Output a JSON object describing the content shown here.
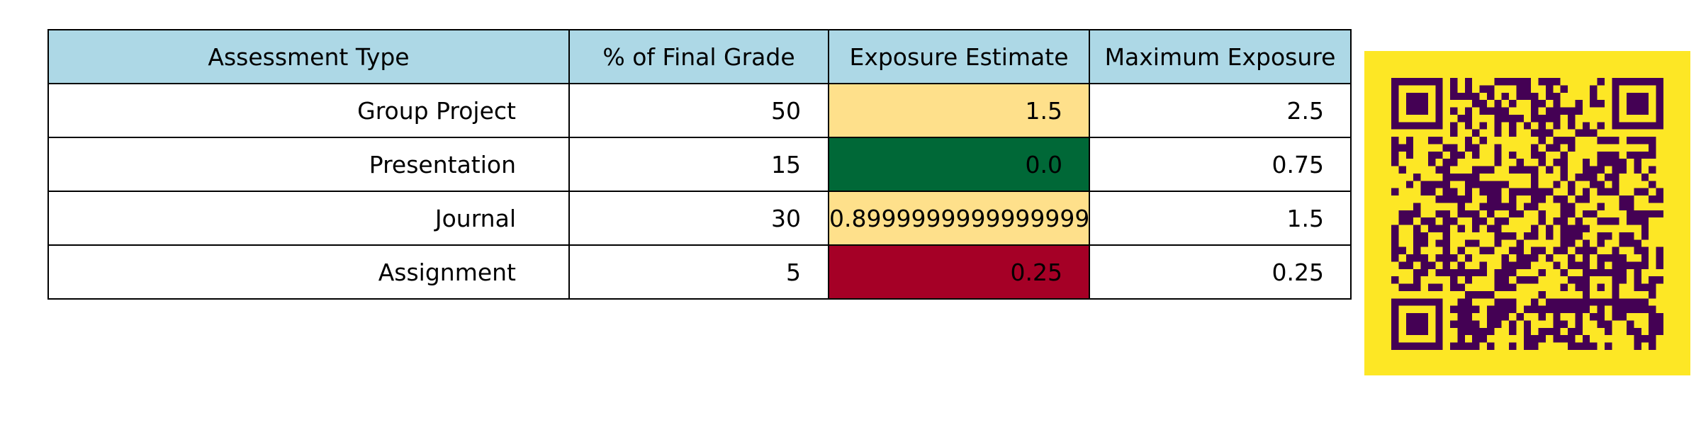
{
  "chart_data": {
    "type": "table",
    "columns": [
      "Assessment Type",
      "% of Final Grade",
      "Exposure Estimate",
      "Maximum Exposure"
    ],
    "rows": [
      {
        "cells": [
          "Group Project",
          "50",
          "1.5",
          "2.5"
        ],
        "exposure_color": "#fee08b"
      },
      {
        "cells": [
          "Presentation",
          "15",
          "0.0",
          "0.75"
        ],
        "exposure_color": "#006837"
      },
      {
        "cells": [
          "Journal",
          "30",
          "0.8999999999999999",
          "1.5"
        ],
        "exposure_color": "#fee08b"
      },
      {
        "cells": [
          "Assignment",
          "5",
          "0.25",
          "0.25"
        ],
        "exposure_color": "#a50026"
      }
    ],
    "header_color": "#add8e6"
  },
  "qr_code": {
    "background_color": "#fde725",
    "module_color": "#440154",
    "modules": 37
  }
}
